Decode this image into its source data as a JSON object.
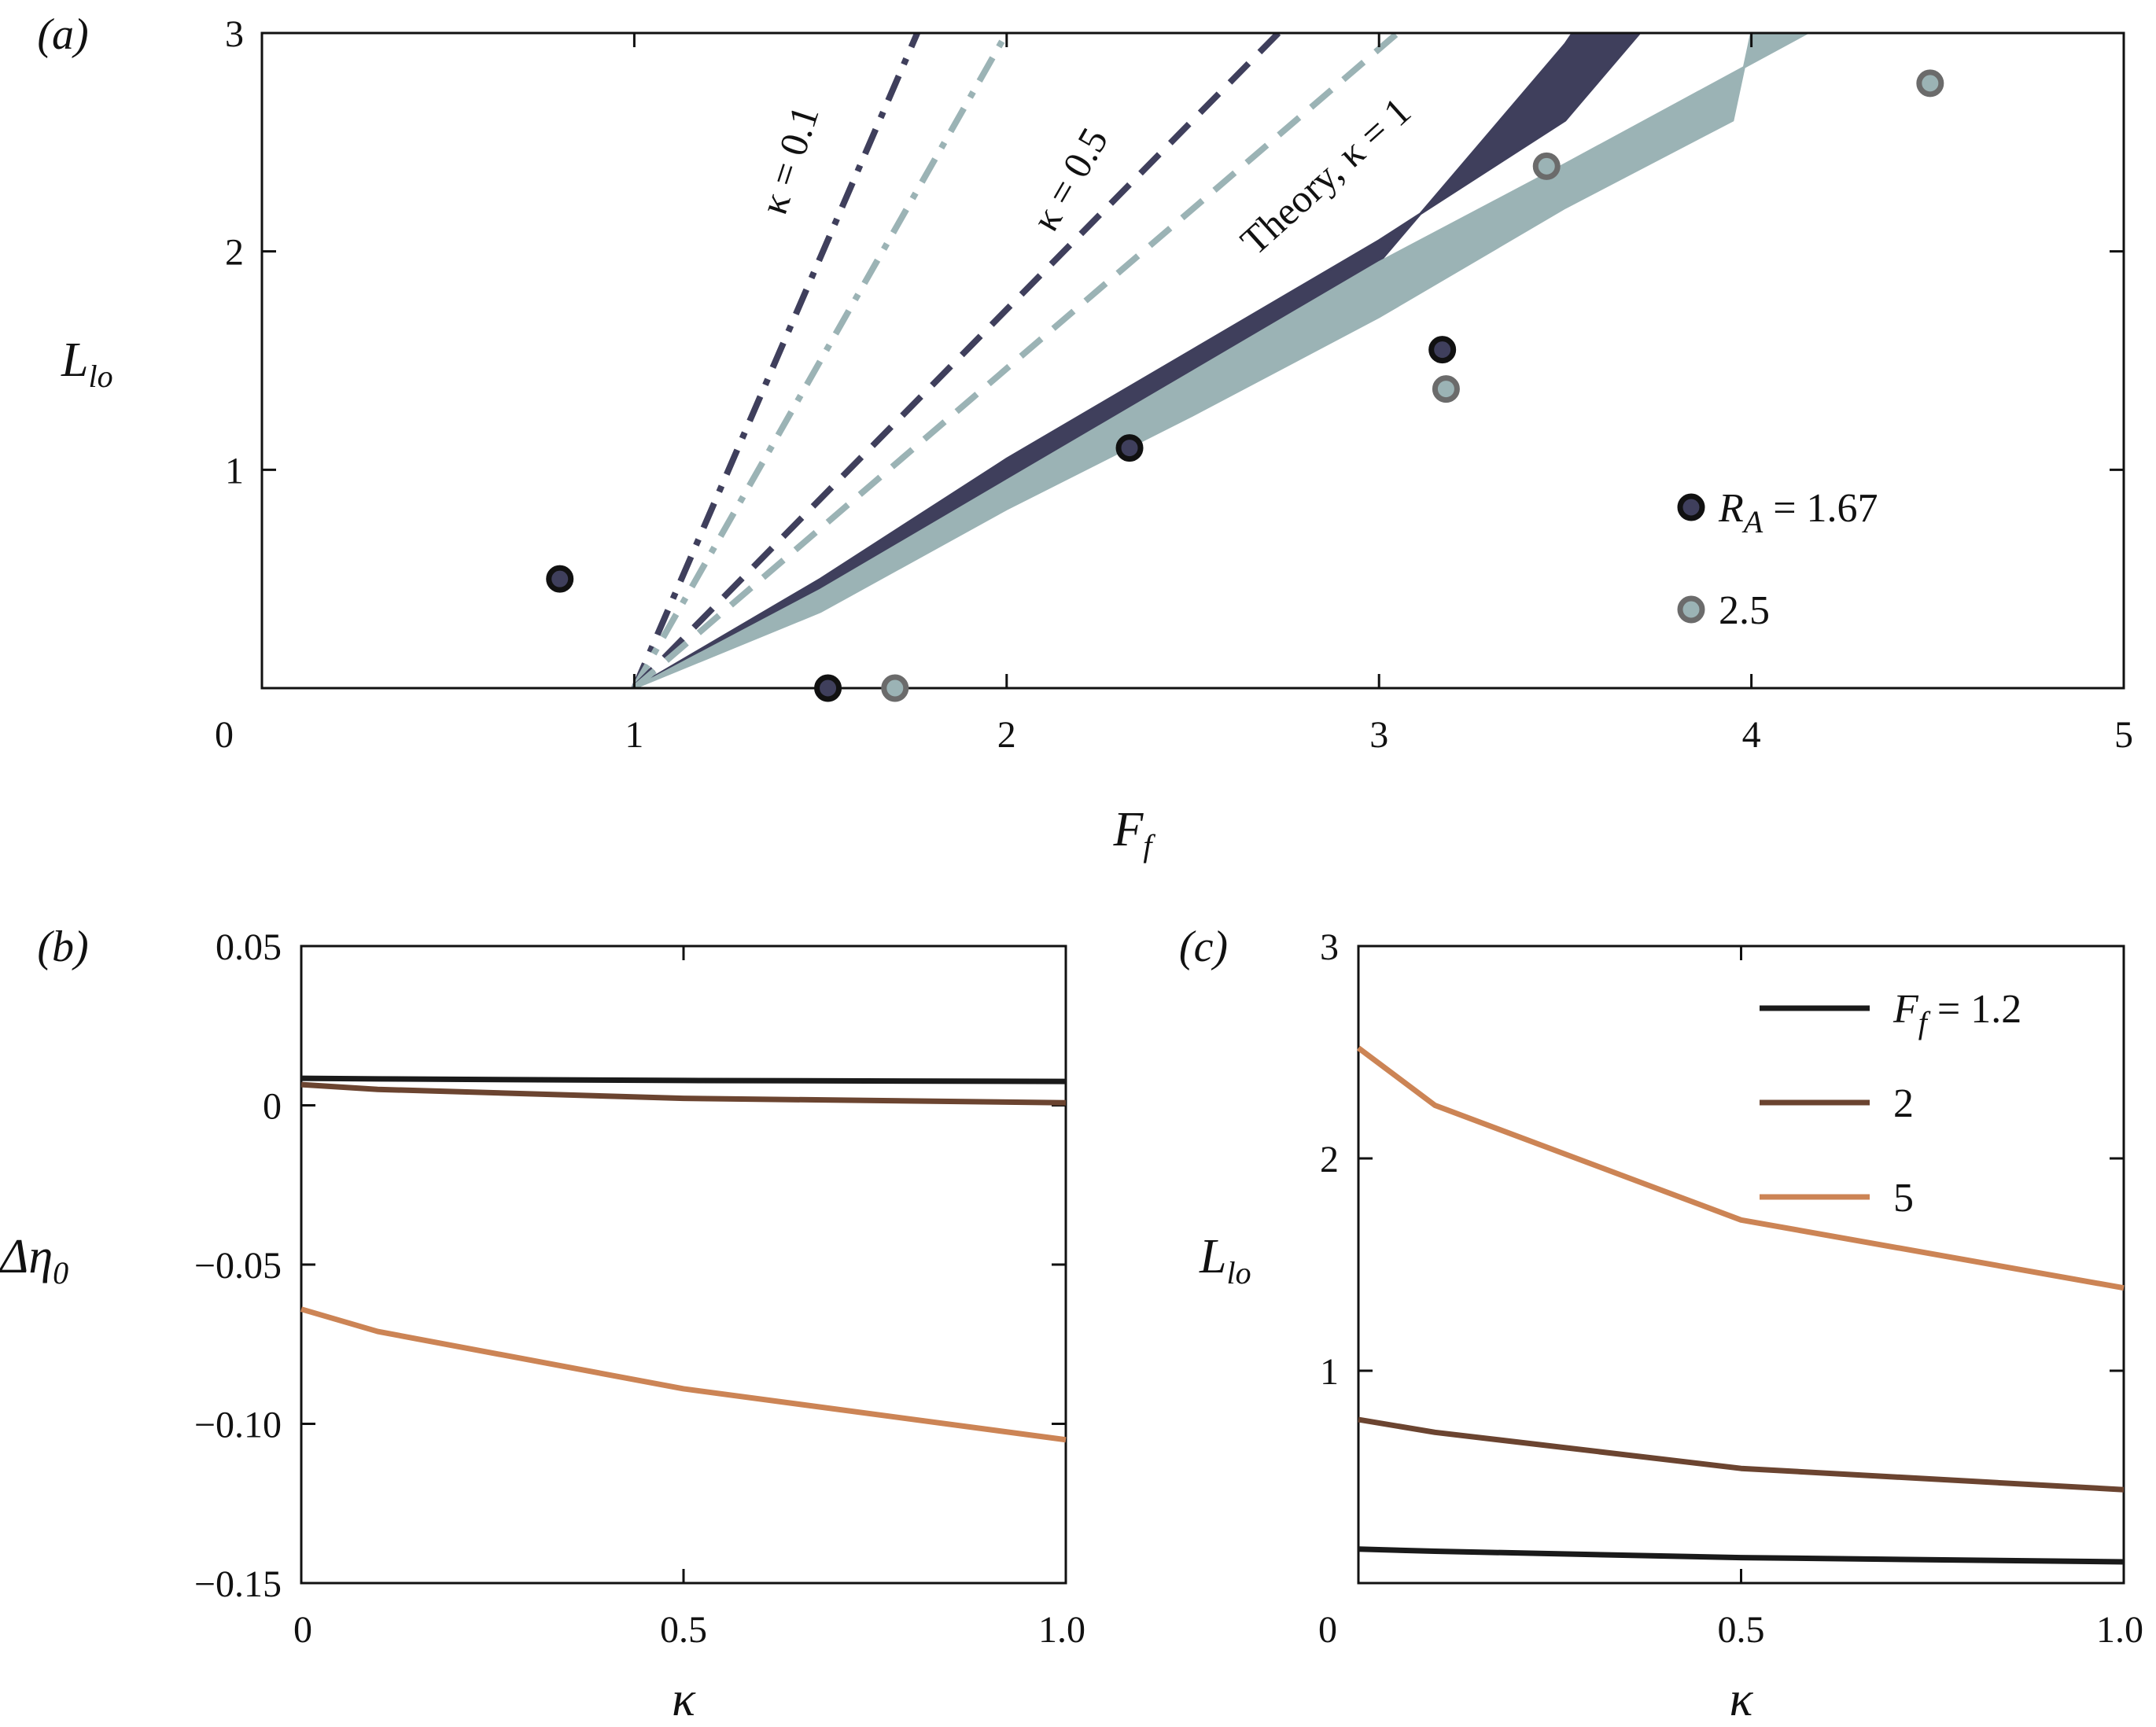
{
  "chart_data": [
    {
      "panel": "(a)",
      "type": "scatter",
      "xlabel": "F",
      "xlabel_sub": "f",
      "ylabel": "L",
      "ylabel_sub": "lo",
      "xlim": [
        0,
        5
      ],
      "ylim": [
        0,
        3
      ],
      "xticks": [
        "0",
        "1",
        "2",
        "3",
        "4",
        "5"
      ],
      "yticks": [
        "1",
        "2",
        "3"
      ],
      "colors": {
        "dark": "#3f3f5c",
        "light": "#9bb3b5",
        "edge_dark": "#111111",
        "edge_light": "#6b6b6b"
      },
      "theory_lines": [
        {
          "name": "kappa-0.1-dark",
          "style": "dashdot",
          "color": "dark",
          "x": [
            1,
            1.76
          ],
          "y": [
            0,
            3
          ]
        },
        {
          "name": "kappa-0.1-light",
          "style": "dashdot",
          "color": "light",
          "x": [
            1,
            2.0
          ],
          "y": [
            0,
            3
          ]
        },
        {
          "name": "kappa-0.5-dark",
          "style": "dashed",
          "color": "dark",
          "x": [
            1,
            2.73
          ],
          "y": [
            0,
            3
          ]
        },
        {
          "name": "kappa-0.5-light",
          "style": "dashed",
          "color": "light",
          "x": [
            1,
            3.05
          ],
          "y": [
            0,
            3
          ]
        }
      ],
      "theory_bands": [
        {
          "name": "kappa-1-dark",
          "color": "dark",
          "upper": [
            [
              1,
              0
            ],
            [
              1.5,
              0.5
            ],
            [
              2,
              1.05
            ],
            [
              2.5,
              1.55
            ],
            [
              3,
              2.05
            ],
            [
              3.5,
              2.6
            ],
            [
              3.7,
              3
            ]
          ],
          "lower": [
            [
              1,
              0
            ],
            [
              1.5,
              0.45
            ],
            [
              2,
              0.95
            ],
            [
              2.5,
              1.45
            ],
            [
              3,
              1.95
            ],
            [
              3.5,
              2.95
            ],
            [
              3.52,
              3
            ]
          ]
        },
        {
          "name": "kappa-1-light",
          "color": "light",
          "upper": [
            [
              1,
              0
            ],
            [
              1.5,
              0.45
            ],
            [
              2,
              0.95
            ],
            [
              2.5,
              1.45
            ],
            [
              3,
              1.95
            ],
            [
              3.5,
              2.4
            ],
            [
              4.15,
              3
            ]
          ],
          "lower": [
            [
              1,
              0
            ],
            [
              1.5,
              0.35
            ],
            [
              2,
              0.82
            ],
            [
              2.5,
              1.25
            ],
            [
              3,
              1.7
            ],
            [
              3.5,
              2.2
            ],
            [
              3.95,
              2.6
            ],
            [
              4.0,
              3
            ]
          ]
        }
      ],
      "annotations": [
        {
          "text": "κ = 0.1",
          "x": 1.45,
          "y": 2.4,
          "angle": -72
        },
        {
          "text": "κ = 0.5",
          "x": 2.2,
          "y": 2.3,
          "angle": -60
        },
        {
          "text": "Theory, κ = 1",
          "x": 2.88,
          "y": 2.3,
          "angle": -42
        }
      ],
      "series": [
        {
          "name": "R_A = 1.67",
          "color": "dark",
          "points": [
            [
              0.8,
              0.5
            ],
            [
              1.52,
              0.0
            ],
            [
              2.33,
              1.1
            ],
            [
              3.17,
              1.55
            ]
          ]
        },
        {
          "name": "2.5",
          "color": "light",
          "points": [
            [
              1.7,
              0.0
            ],
            [
              3.18,
              1.37
            ],
            [
              3.45,
              2.39
            ],
            [
              4.48,
              2.77
            ]
          ]
        }
      ],
      "legend": [
        {
          "main": "R",
          "sub": "A",
          "rest": " = 1.67",
          "color": "dark"
        },
        {
          "main": "2.5",
          "sub": "",
          "rest": "",
          "color": "light"
        }
      ]
    },
    {
      "panel": "(b)",
      "type": "line",
      "xlabel": "κ",
      "ylabel": "Δη",
      "ylabel_sub": "0",
      "xlim": [
        0,
        1
      ],
      "ylim": [
        -0.15,
        0.05
      ],
      "xticks": [
        "0",
        "0.5",
        "1.0"
      ],
      "yticks": [
        "0.05",
        "0",
        "−0.05",
        "−0.10",
        "−0.15"
      ],
      "series": [
        {
          "name": "F_f = 1.2",
          "color": "#1a1a1a",
          "x": [
            0,
            0.1,
            0.5,
            1.0
          ],
          "y": [
            0.0085,
            0.0083,
            0.0078,
            0.0075
          ]
        },
        {
          "name": "2",
          "color": "#6b4430",
          "x": [
            0,
            0.1,
            0.5,
            1.0
          ],
          "y": [
            0.0065,
            0.005,
            0.0022,
            0.0008
          ]
        },
        {
          "name": "5",
          "color": "#cc8455",
          "x": [
            0,
            0.1,
            0.5,
            1.0
          ],
          "y": [
            -0.064,
            -0.071,
            -0.089,
            -0.105
          ]
        }
      ]
    },
    {
      "panel": "(c)",
      "type": "line",
      "xlabel": "κ",
      "ylabel": "L",
      "ylabel_sub": "lo",
      "xlim": [
        0,
        1
      ],
      "ylim": [
        0,
        3
      ],
      "xticks": [
        "0",
        "0.5",
        "1.0"
      ],
      "yticks": [
        "1",
        "2",
        "3"
      ],
      "series": [
        {
          "name": "F_f = 1.2",
          "color": "#1a1a1a",
          "x": [
            0,
            0.1,
            0.5,
            1.0
          ],
          "y": [
            0.16,
            0.15,
            0.12,
            0.1
          ]
        },
        {
          "name": "2",
          "color": "#6b4430",
          "x": [
            0,
            0.1,
            0.5,
            1.0
          ],
          "y": [
            0.77,
            0.71,
            0.54,
            0.44
          ]
        },
        {
          "name": "5",
          "color": "#cc8455",
          "x": [
            0,
            0.1,
            0.5,
            1.0
          ],
          "y": [
            2.52,
            2.25,
            1.71,
            1.39
          ]
        }
      ],
      "legend": [
        {
          "main": "F",
          "sub": "f",
          "rest": " = 1.2",
          "color": "#1a1a1a"
        },
        {
          "main": "2",
          "sub": "",
          "rest": "",
          "color": "#6b4430"
        },
        {
          "main": "5",
          "sub": "",
          "rest": "",
          "color": "#cc8455"
        }
      ]
    }
  ]
}
